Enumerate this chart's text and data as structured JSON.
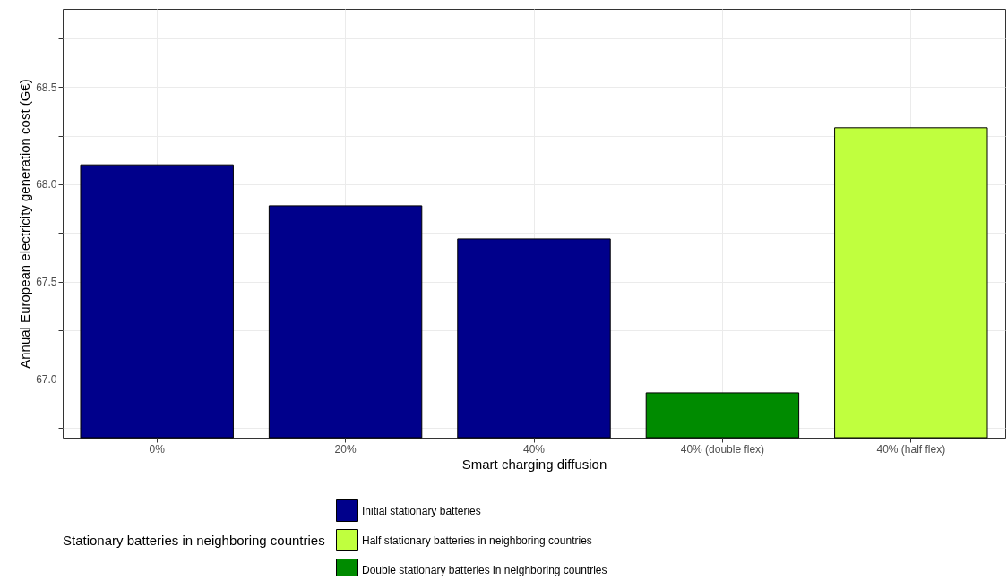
{
  "chart_data": {
    "type": "bar",
    "xlabel": "Smart charging diffusion",
    "ylabel": "Annual European electricity generation cost (G€)",
    "legend_title": "Stationary batteries in neighboring countries",
    "categories": [
      "0%",
      "20%",
      "40%",
      "40% (double flex)",
      "40% (half flex)"
    ],
    "series": [
      {
        "name": "Initial stationary batteries",
        "color": "#00008b",
        "values": [
          68.1,
          67.89,
          67.72,
          null,
          null
        ]
      },
      {
        "name": "Half stationary batteries in neighboring countries",
        "color": "#c0ff3e",
        "values": [
          null,
          null,
          null,
          null,
          68.29
        ]
      },
      {
        "name": "Double stationary batteries in neighboring countries",
        "color": "#008b00",
        "values": [
          null,
          null,
          null,
          66.93,
          null
        ]
      }
    ],
    "ylim": [
      66.7,
      68.9
    ],
    "yticks": [
      {
        "value": 66.75,
        "label": null
      },
      {
        "value": 67,
        "label": "67.0"
      },
      {
        "value": 67.25,
        "label": null
      },
      67.5,
      {
        "value": 67.75,
        "label": null
      },
      {
        "value": 68,
        "label": "68.0"
      },
      {
        "value": 68.25,
        "label": null
      },
      68.5,
      {
        "value": 68.75,
        "label": null
      }
    ],
    "grid": true,
    "legend": "bottom"
  }
}
